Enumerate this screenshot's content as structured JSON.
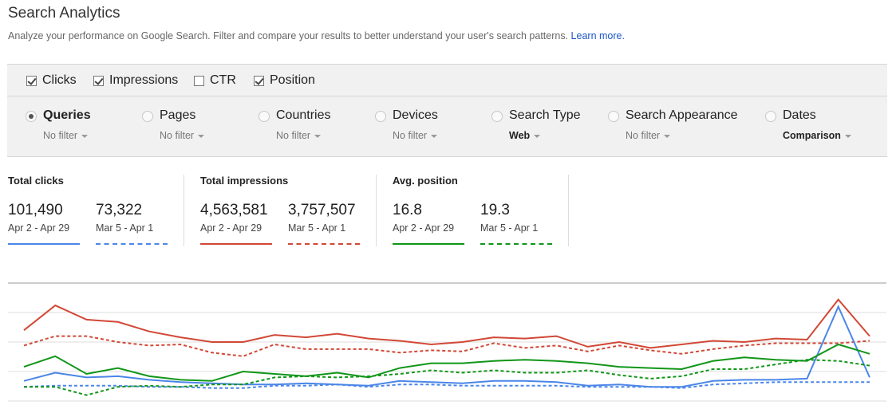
{
  "header": {
    "title": "Search Analytics",
    "description": "Analyze your performance on Google Search. Filter and compare your results to better understand your user's search patterns.",
    "learn_more": "Learn more."
  },
  "metrics": [
    {
      "label": "Clicks",
      "checked": true
    },
    {
      "label": "Impressions",
      "checked": true
    },
    {
      "label": "CTR",
      "checked": false
    },
    {
      "label": "Position",
      "checked": true
    }
  ],
  "dimensions": [
    {
      "label": "Queries",
      "filter": "No filter",
      "selected": true
    },
    {
      "label": "Pages",
      "filter": "No filter",
      "selected": false
    },
    {
      "label": "Countries",
      "filter": "No filter",
      "selected": false
    },
    {
      "label": "Devices",
      "filter": "No filter",
      "selected": false
    },
    {
      "label": "Search Type",
      "filter": "Web",
      "selected": false
    },
    {
      "label": "Search Appearance",
      "filter": "No filter",
      "selected": false
    },
    {
      "label": "Dates",
      "filter": "Comparison",
      "selected": false
    }
  ],
  "stats": [
    {
      "title": "Total clicks",
      "color": "#4a86e8",
      "current": {
        "value": "101,490",
        "range": "Apr 2 - Apr 29"
      },
      "previous": {
        "value": "73,322",
        "range": "Mar 5 - Apr 1"
      }
    },
    {
      "title": "Total impressions",
      "color": "#d14836",
      "current": {
        "value": "4,563,581",
        "range": "Apr 2 - Apr 29"
      },
      "previous": {
        "value": "3,757,507",
        "range": "Mar 5 - Apr 1"
      }
    },
    {
      "title": "Avg. position",
      "color": "#109618",
      "current": {
        "value": "16.8",
        "range": "Apr 2 - Apr 29"
      },
      "previous": {
        "value": "19.3",
        "range": "Mar 5 - Apr 1"
      }
    }
  ],
  "chart_data": {
    "type": "line",
    "title": "",
    "grid": true,
    "series": [
      {
        "metric": "impressions",
        "period": "current",
        "color": "#d14836",
        "dashed": false,
        "values": [
          0.6,
          0.81,
          0.69,
          0.67,
          0.59,
          0.54,
          0.5,
          0.5,
          0.56,
          0.54,
          0.57,
          0.53,
          0.51,
          0.48,
          0.5,
          0.54,
          0.53,
          0.55,
          0.46,
          0.5,
          0.45,
          0.48,
          0.51,
          0.5,
          0.53,
          0.52,
          0.86,
          0.55
        ]
      },
      {
        "metric": "impressions",
        "period": "previous",
        "color": "#d14836",
        "dashed": true,
        "values": [
          0.47,
          0.55,
          0.55,
          0.5,
          0.47,
          0.48,
          0.41,
          0.38,
          0.48,
          0.44,
          0.44,
          0.44,
          0.41,
          0.43,
          0.42,
          0.49,
          0.45,
          0.47,
          0.42,
          0.47,
          0.43,
          0.4,
          0.44,
          0.47,
          0.49,
          0.49,
          0.49,
          0.51
        ]
      },
      {
        "metric": "clicks",
        "period": "current",
        "color": "#4a86e8",
        "dashed": false,
        "values": [
          0.17,
          0.24,
          0.2,
          0.21,
          0.18,
          0.16,
          0.15,
          0.14,
          0.14,
          0.15,
          0.14,
          0.13,
          0.17,
          0.16,
          0.15,
          0.17,
          0.17,
          0.16,
          0.13,
          0.14,
          0.12,
          0.12,
          0.17,
          0.18,
          0.18,
          0.19,
          0.8,
          0.2
        ]
      },
      {
        "metric": "clicks",
        "period": "previous",
        "color": "#4a86e8",
        "dashed": true,
        "values": [
          0.12,
          0.13,
          0.13,
          0.13,
          0.12,
          0.12,
          0.11,
          0.11,
          0.13,
          0.13,
          0.14,
          0.12,
          0.14,
          0.14,
          0.13,
          0.13,
          0.13,
          0.13,
          0.12,
          0.12,
          0.12,
          0.11,
          0.14,
          0.15,
          0.16,
          0.16,
          0.16,
          0.16
        ]
      },
      {
        "metric": "position",
        "period": "current",
        "color": "#109618",
        "dashed": false,
        "values": [
          0.29,
          0.38,
          0.23,
          0.28,
          0.21,
          0.18,
          0.17,
          0.25,
          0.23,
          0.21,
          0.24,
          0.2,
          0.28,
          0.32,
          0.32,
          0.34,
          0.35,
          0.34,
          0.32,
          0.29,
          0.28,
          0.27,
          0.34,
          0.37,
          0.35,
          0.34,
          0.48,
          0.4
        ]
      },
      {
        "metric": "position",
        "period": "previous",
        "color": "#109618",
        "dashed": true,
        "values": [
          0.12,
          0.12,
          0.05,
          0.12,
          0.13,
          0.12,
          0.14,
          0.14,
          0.2,
          0.21,
          0.2,
          0.21,
          0.23,
          0.26,
          0.24,
          0.26,
          0.24,
          0.24,
          0.26,
          0.22,
          0.19,
          0.21,
          0.27,
          0.27,
          0.31,
          0.35,
          0.34,
          0.3
        ]
      }
    ]
  }
}
